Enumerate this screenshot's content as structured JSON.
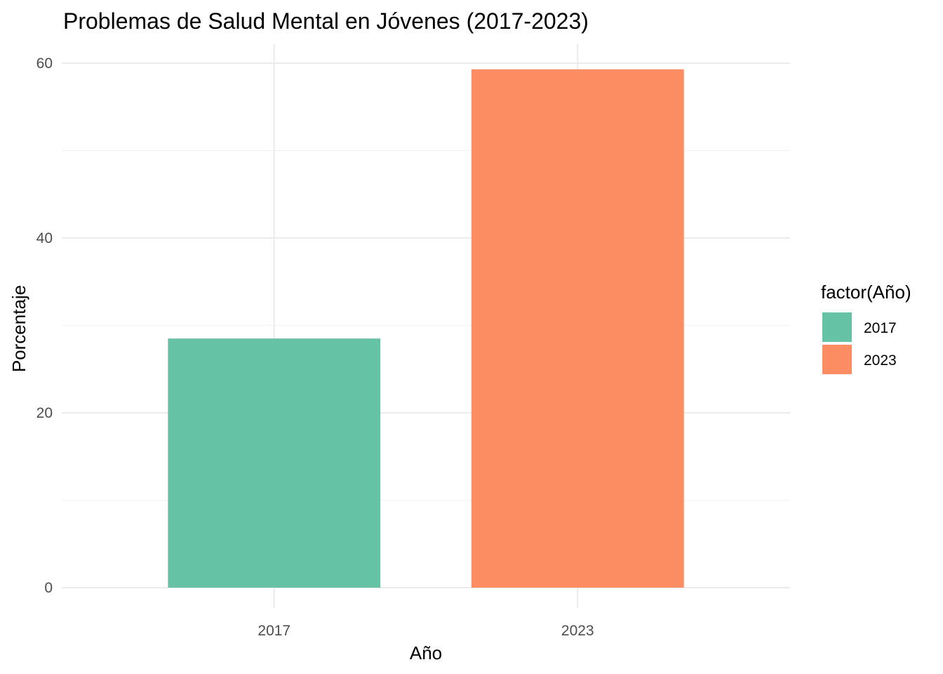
{
  "chart_data": {
    "type": "bar",
    "title": "Problemas de Salud Mental en Jóvenes (2017-2023)",
    "xlabel": "Año",
    "ylabel": "Porcentaje",
    "categories": [
      "2017",
      "2023"
    ],
    "values": [
      28.5,
      59.3
    ],
    "colors": [
      "#66c2a5",
      "#fc8d62"
    ],
    "ylim": [
      0,
      62
    ],
    "yticks": [
      0,
      20,
      40,
      60
    ],
    "grid": true,
    "legend": {
      "title": "factor(Año)",
      "placement": "right",
      "entries": [
        "2017",
        "2023"
      ]
    }
  }
}
